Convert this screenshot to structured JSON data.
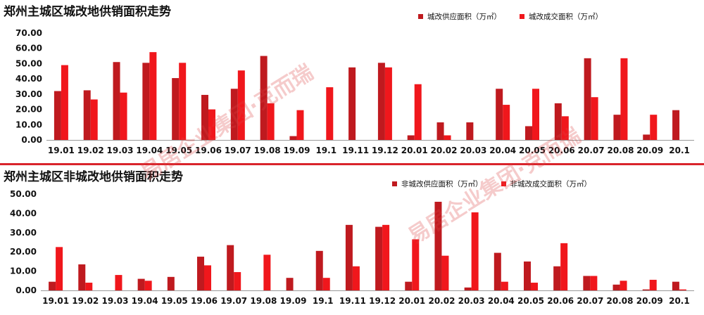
{
  "colors": {
    "supply": "#bf1a1f",
    "deal": "#f0171c",
    "frame": "#d9242b"
  },
  "watermark": {
    "text1": "易居企业集团·克而瑞",
    "text2": "易居企业集团·克而瑞"
  },
  "chart_data": [
    {
      "type": "bar",
      "title": "郑州主城区城改地供销面积走势",
      "categories": [
        "19.01",
        "19.02",
        "19.03",
        "19.04",
        "19.05",
        "19.06",
        "19.07",
        "19.08",
        "19.09",
        "19.1",
        "19.11",
        "19.12",
        "20.01",
        "20.02",
        "20.03",
        "20.04",
        "20.05",
        "20.06",
        "20.07",
        "20.08",
        "20.09",
        "20.1"
      ],
      "y_ticks": [
        "0.00",
        "10.00",
        "20.00",
        "30.00",
        "40.00",
        "50.00",
        "60.00",
        "70.00"
      ],
      "ylim": [
        0,
        70
      ],
      "series": [
        {
          "name": "城改供应面积（万㎡）",
          "values": [
            32,
            32.5,
            51,
            50.5,
            40.5,
            29.5,
            33.5,
            55,
            2.5,
            0,
            47.5,
            50.5,
            3,
            11.5,
            11.5,
            33.5,
            9,
            24,
            53.5,
            16.5,
            3.5,
            19.5
          ]
        },
        {
          "name": "城改成交面积（万㎡）",
          "values": [
            49,
            26.5,
            31,
            57.5,
            50.5,
            20,
            45.5,
            24,
            19.5,
            34.5,
            0,
            47.5,
            36.5,
            3,
            0,
            23,
            33.5,
            15.5,
            28,
            53.5,
            16.5,
            0
          ]
        }
      ],
      "grid": false,
      "legend": "top-right"
    },
    {
      "type": "bar",
      "title": "郑州主城区非城改地供销面积走势",
      "categories": [
        "19.01",
        "19.02",
        "19.03",
        "19.04",
        "19.05",
        "19.06",
        "19.07",
        "19.08",
        "19.09",
        "19.1",
        "19.11",
        "19.12",
        "20.01",
        "20.02",
        "20.03",
        "20.04",
        "20.05",
        "20.06",
        "20.07",
        "20.08",
        "20.09",
        "20.1"
      ],
      "y_ticks": [
        "0.00",
        "10.00",
        "20.00",
        "30.00",
        "40.00",
        "50.00"
      ],
      "ylim": [
        0,
        50
      ],
      "series": [
        {
          "name": "非城改供应面积（万㎡）",
          "values": [
            4.5,
            13.5,
            0,
            6,
            7,
            17.5,
            23.5,
            0,
            6.5,
            20.5,
            34,
            33,
            4.5,
            46,
            1.5,
            19.5,
            15,
            12.5,
            7.5,
            3,
            0.5,
            4.5
          ]
        },
        {
          "name": "非城改成交面积（万㎡）",
          "values": [
            22.5,
            4,
            8,
            5,
            0,
            13,
            9.5,
            18.5,
            0,
            6.5,
            12.5,
            34,
            26.5,
            18,
            40.5,
            4.5,
            4,
            24.5,
            7.5,
            5,
            5.5,
            0.5
          ]
        }
      ],
      "grid": false,
      "legend": "top-right"
    }
  ]
}
